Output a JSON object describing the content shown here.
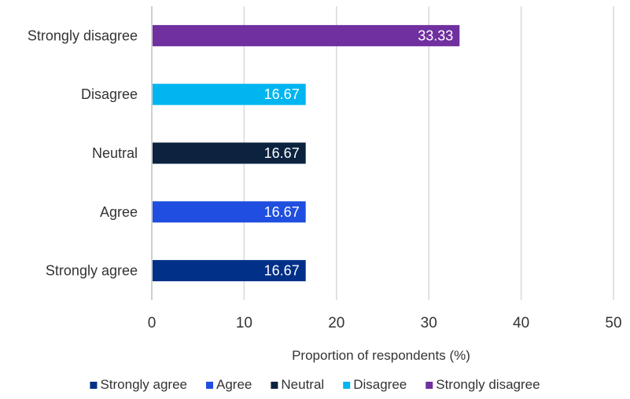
{
  "chart_data": {
    "type": "bar",
    "orientation": "horizontal",
    "categories": [
      "Strongly agree",
      "Agree",
      "Neutral",
      "Disagree",
      "Strongly disagree"
    ],
    "values": [
      16.67,
      16.67,
      16.67,
      16.67,
      33.33
    ],
    "data_labels": [
      "16.67",
      "16.67",
      "16.67",
      "16.67",
      "33.33"
    ],
    "colors": [
      "#003087",
      "#1f4ee0",
      "#0c2340",
      "#00b5f0",
      "#7030a0"
    ],
    "title": "",
    "xlabel": "Proportion of respondents (%)",
    "ylabel": "",
    "xlim": [
      0,
      50
    ],
    "xticks": [
      0,
      10,
      20,
      30,
      40,
      50
    ],
    "xtick_labels": [
      "0",
      "10",
      "20",
      "30",
      "40",
      "50"
    ],
    "grid": "vertical",
    "legend": {
      "position": "bottom",
      "entries": [
        "Strongly agree",
        "Agree",
        "Neutral",
        "Disagree",
        "Strongly disagree"
      ]
    }
  }
}
